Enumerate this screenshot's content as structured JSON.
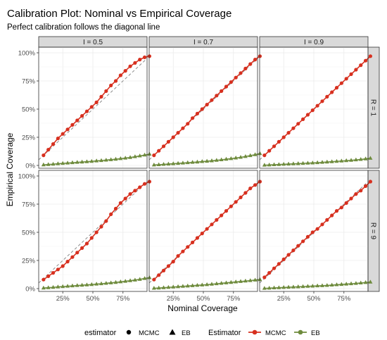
{
  "chart_data": {
    "type": "line",
    "title": "Calibration Plot: Nominal vs Empirical Coverage",
    "subtitle": "Perfect calibration follows the diagonal line",
    "xlabel": "Nominal Coverage",
    "ylabel": "Empirical Coverage",
    "xlim": [
      0.05,
      0.95
    ],
    "ylim": [
      0,
      1
    ],
    "x_ticks": [
      "25%",
      "50%",
      "75%"
    ],
    "y_ticks": [
      "0%",
      "25%",
      "50%",
      "75%",
      "100%"
    ],
    "reference_line": "diagonal y = x, dashed gray",
    "col_facets": [
      "I = 0.5",
      "I = 0.7",
      "I = 0.9"
    ],
    "row_facets": [
      "R = 1",
      "R = 9"
    ],
    "x": [
      0.09,
      0.13,
      0.17,
      0.21,
      0.25,
      0.29,
      0.33,
      0.37,
      0.41,
      0.45,
      0.49,
      0.53,
      0.57,
      0.61,
      0.65,
      0.69,
      0.73,
      0.77,
      0.81,
      0.85,
      0.89,
      0.93,
      0.97
    ],
    "series_colors": {
      "MCMC": "#d7301f",
      "EB": "#6e8b3d"
    },
    "legend": {
      "shape_title": "estimator",
      "shape_items": [
        {
          "label": "MCMC",
          "shape": "circle"
        },
        {
          "label": "EB",
          "shape": "triangle"
        }
      ],
      "color_title": "Estimator",
      "color_items": [
        {
          "label": "MCMC",
          "color": "#d7301f"
        },
        {
          "label": "EB",
          "color": "#6e8b3d"
        }
      ],
      "position": "bottom"
    },
    "panels": [
      {
        "I": "I = 0.5",
        "R": "R = 1",
        "series": [
          {
            "name": "MCMC",
            "values": [
              0.09,
              0.14,
              0.19,
              0.24,
              0.28,
              0.32,
              0.36,
              0.4,
              0.44,
              0.48,
              0.52,
              0.56,
              0.61,
              0.66,
              0.71,
              0.75,
              0.8,
              0.84,
              0.88,
              0.91,
              0.94,
              0.96,
              0.97
            ]
          },
          {
            "name": "EB",
            "values": [
              0.005,
              0.008,
              0.011,
              0.015,
              0.018,
              0.021,
              0.024,
              0.027,
              0.03,
              0.033,
              0.036,
              0.04,
              0.043,
              0.047,
              0.051,
              0.055,
              0.06,
              0.065,
              0.07,
              0.077,
              0.084,
              0.092,
              0.1
            ]
          }
        ]
      },
      {
        "I": "I = 0.7",
        "R": "R = 1",
        "series": [
          {
            "name": "MCMC",
            "values": [
              0.09,
              0.13,
              0.17,
              0.21,
              0.25,
              0.29,
              0.33,
              0.37,
              0.42,
              0.46,
              0.5,
              0.54,
              0.58,
              0.62,
              0.66,
              0.7,
              0.74,
              0.78,
              0.82,
              0.86,
              0.9,
              0.94,
              0.97
            ]
          },
          {
            "name": "EB",
            "values": [
              0.004,
              0.006,
              0.009,
              0.012,
              0.015,
              0.018,
              0.021,
              0.024,
              0.027,
              0.03,
              0.034,
              0.037,
              0.041,
              0.045,
              0.05,
              0.055,
              0.06,
              0.066,
              0.072,
              0.079,
              0.087,
              0.095,
              0.105
            ]
          }
        ]
      },
      {
        "I": "I = 0.9",
        "R": "R = 1",
        "series": [
          {
            "name": "MCMC",
            "values": [
              0.09,
              0.13,
              0.17,
              0.21,
              0.25,
              0.29,
              0.33,
              0.37,
              0.41,
              0.45,
              0.49,
              0.53,
              0.57,
              0.61,
              0.65,
              0.69,
              0.73,
              0.77,
              0.81,
              0.85,
              0.89,
              0.93,
              0.97
            ]
          },
          {
            "name": "EB",
            "values": [
              0.002,
              0.004,
              0.006,
              0.008,
              0.01,
              0.012,
              0.014,
              0.016,
              0.018,
              0.02,
              0.022,
              0.024,
              0.027,
              0.03,
              0.033,
              0.036,
              0.039,
              0.042,
              0.045,
              0.049,
              0.053,
              0.058,
              0.063
            ]
          }
        ]
      },
      {
        "I": "I = 0.5",
        "R": "R = 9",
        "series": [
          {
            "name": "MCMC",
            "values": [
              0.08,
              0.11,
              0.14,
              0.17,
              0.2,
              0.24,
              0.28,
              0.32,
              0.36,
              0.4,
              0.45,
              0.5,
              0.55,
              0.6,
              0.66,
              0.71,
              0.76,
              0.8,
              0.84,
              0.87,
              0.9,
              0.93,
              0.95
            ]
          },
          {
            "name": "EB",
            "values": [
              0.005,
              0.008,
              0.011,
              0.015,
              0.018,
              0.021,
              0.024,
              0.027,
              0.03,
              0.033,
              0.036,
              0.04,
              0.043,
              0.047,
              0.051,
              0.055,
              0.06,
              0.065,
              0.07,
              0.076,
              0.082,
              0.09,
              0.097
            ]
          }
        ]
      },
      {
        "I": "I = 0.7",
        "R": "R = 9",
        "series": [
          {
            "name": "MCMC",
            "values": [
              0.08,
              0.12,
              0.16,
              0.2,
              0.24,
              0.29,
              0.33,
              0.37,
              0.41,
              0.45,
              0.49,
              0.53,
              0.57,
              0.61,
              0.65,
              0.69,
              0.73,
              0.77,
              0.81,
              0.85,
              0.89,
              0.92,
              0.95
            ]
          },
          {
            "name": "EB",
            "values": [
              0.003,
              0.005,
              0.008,
              0.011,
              0.014,
              0.017,
              0.02,
              0.023,
              0.026,
              0.029,
              0.032,
              0.035,
              0.039,
              0.043,
              0.047,
              0.051,
              0.055,
              0.059,
              0.063,
              0.067,
              0.071,
              0.076,
              0.08
            ]
          }
        ]
      },
      {
        "I": "I = 0.9",
        "R": "R = 9",
        "series": [
          {
            "name": "MCMC",
            "values": [
              0.1,
              0.14,
              0.18,
              0.22,
              0.26,
              0.3,
              0.34,
              0.38,
              0.42,
              0.46,
              0.5,
              0.53,
              0.57,
              0.61,
              0.65,
              0.69,
              0.72,
              0.76,
              0.8,
              0.84,
              0.87,
              0.91,
              0.95
            ]
          },
          {
            "name": "EB",
            "values": [
              0.002,
              0.004,
              0.006,
              0.008,
              0.01,
              0.012,
              0.014,
              0.016,
              0.018,
              0.02,
              0.022,
              0.024,
              0.026,
              0.028,
              0.031,
              0.034,
              0.037,
              0.04,
              0.043,
              0.046,
              0.05,
              0.054,
              0.058
            ]
          }
        ]
      }
    ]
  }
}
